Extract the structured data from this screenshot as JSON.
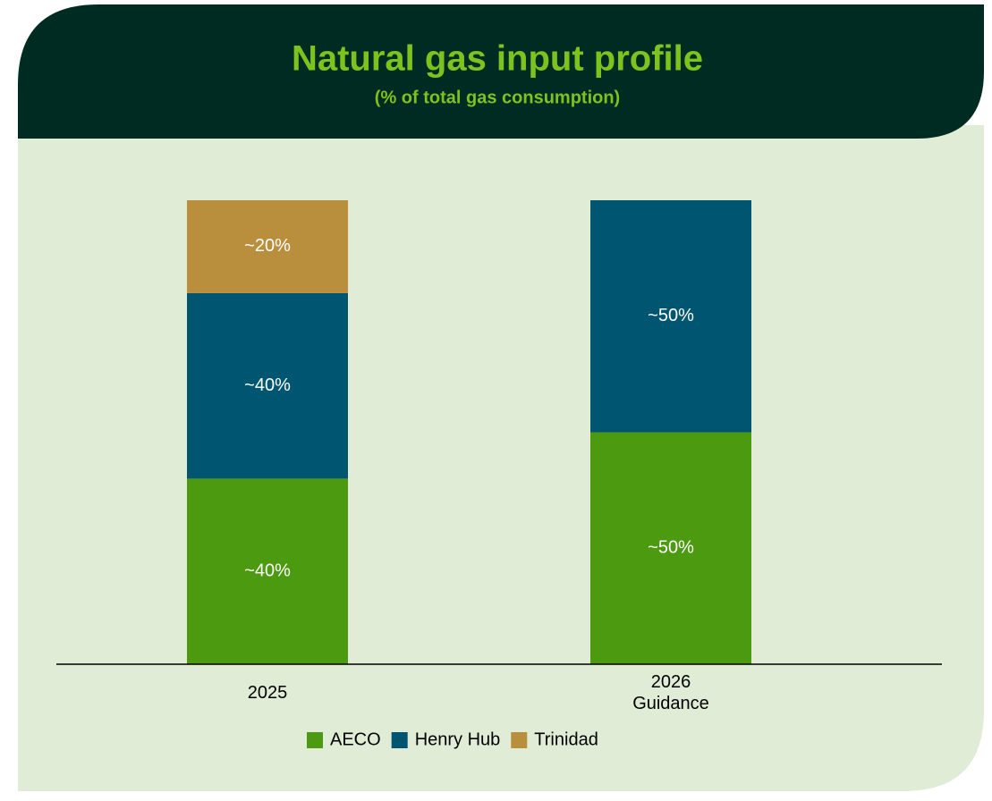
{
  "chart_data": {
    "type": "stacked_bar",
    "title": "Natural gas input profile",
    "subtitle": "(% of total gas consumption)",
    "categories": [
      "2025",
      "2026 Guidance"
    ],
    "series": [
      {
        "name": "AECO",
        "color": "#4c9a10",
        "values": [
          40,
          50
        ],
        "value_labels": [
          "~40%",
          "~50%"
        ]
      },
      {
        "name": "Henry Hub",
        "color": "#005670",
        "values": [
          40,
          50
        ],
        "value_labels": [
          "~40%",
          "~50%"
        ]
      },
      {
        "name": "Trinidad",
        "color": "#b98f3e",
        "values": [
          20,
          null
        ],
        "value_labels": [
          "~20%",
          null
        ]
      }
    ],
    "ylim": [
      0,
      100
    ],
    "legend": "bottom"
  }
}
